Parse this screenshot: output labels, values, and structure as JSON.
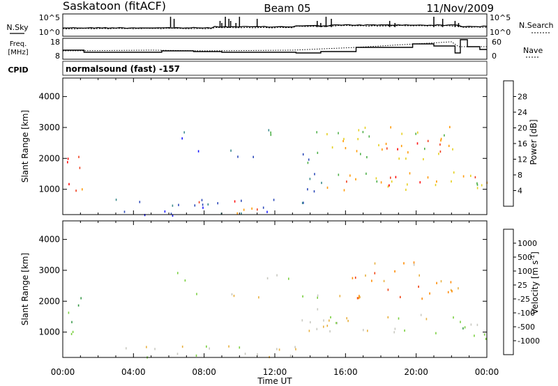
{
  "header": {
    "station": "Saskatoon (fitACF)",
    "beam": "Beam 05",
    "date": "11/Nov/2009"
  },
  "aux": {
    "nsky_label": "N.Sky",
    "nsky_ticks": [
      "10^5",
      "10^0"
    ],
    "nsearch_label": "N.Search",
    "nsearch_ticks": [
      "10^5",
      "10^0"
    ],
    "freq_label": "Freq.",
    "freq_unit": "[MHz]",
    "freq_ticks": [
      "18",
      "8"
    ],
    "nave_label": "Nave",
    "nave_ticks": [
      "60",
      "0"
    ],
    "cpid_label": "CPID",
    "cpid_value": "normalsound (fast) -157"
  },
  "chart_data": [
    {
      "type": "heatmap",
      "panel": "power",
      "ylabel": "Slant Range [km]",
      "ylim": [
        180,
        4600
      ],
      "yticks": [
        "1000",
        "2000",
        "3000",
        "4000"
      ],
      "xlabel": "Time UT",
      "xticks": [
        "00:00",
        "04:00",
        "08:00",
        "12:00",
        "16:00",
        "20:00",
        "00:00"
      ],
      "colorbar": {
        "label": "Power [dB]",
        "ticks": [
          "4",
          "8",
          "12",
          "16",
          "20",
          "24",
          "28"
        ],
        "colors": [
          "#1414ff",
          "#2a47b8",
          "#3a8a8c",
          "#4fb04a",
          "#e6d020",
          "#ff9a00",
          "#f04020",
          "#ff0000"
        ]
      },
      "regions": [
        {
          "t0": 0.0,
          "t1": 1.2,
          "r0": 750,
          "r1": 2150,
          "level": 6
        },
        {
          "t0": 0.15,
          "t1": 0.9,
          "r0": 900,
          "r1": 1300,
          "level": 7
        },
        {
          "t0": 2.5,
          "t1": 13.8,
          "r0": 180,
          "r1": 700,
          "level": 1
        },
        {
          "t0": 7.5,
          "t1": 11.0,
          "r0": 200,
          "r1": 650,
          "level": 6
        },
        {
          "t0": 6.0,
          "t1": 7.0,
          "r0": 2650,
          "r1": 3200,
          "level": 1
        },
        {
          "t0": 7.0,
          "t1": 8.0,
          "r0": 2200,
          "r1": 2450,
          "level": 1
        },
        {
          "t0": 9.3,
          "t1": 11.5,
          "r0": 2050,
          "r1": 2450,
          "level": 2
        },
        {
          "t0": 11.5,
          "t1": 13.8,
          "r0": 2700,
          "r1": 3050,
          "level": 2
        },
        {
          "t0": 13.5,
          "t1": 15.2,
          "r0": 950,
          "r1": 2300,
          "level": 2
        },
        {
          "t0": 14.3,
          "t1": 23.8,
          "r0": 1000,
          "r1": 1600,
          "level": 4
        },
        {
          "t0": 16.0,
          "t1": 21.5,
          "r0": 1150,
          "r1": 1500,
          "level": 6
        },
        {
          "t0": 14.3,
          "t1": 22.8,
          "r0": 2000,
          "r1": 3050,
          "level": 4
        },
        {
          "t0": 17.5,
          "t1": 21.5,
          "r0": 2200,
          "r1": 2650,
          "level": 6
        },
        {
          "t0": 22.8,
          "t1": 24.0,
          "r0": 800,
          "r1": 1500,
          "level": 5
        }
      ]
    },
    {
      "type": "heatmap",
      "panel": "velocity",
      "ylabel": "Slant Range [km]",
      "ylim": [
        180,
        4600
      ],
      "yticks": [
        "1000",
        "2000",
        "3000",
        "4000"
      ],
      "xlabel": "Time UT",
      "xticks": [
        "00:00",
        "04:00",
        "08:00",
        "12:00",
        "16:00",
        "20:00",
        "00:00"
      ],
      "colorbar": {
        "label": "Velocity [m s^-1]",
        "ticks": [
          "1000",
          "500",
          "100",
          "25",
          "-25",
          "-100",
          "-500",
          "-1000"
        ],
        "colors": [
          "#1a3ccf",
          "#2a7aa0",
          "#3a9a4a",
          "#7ad040",
          "#c8c8c0",
          "#e8b040",
          "#ff8a00",
          "#f04010",
          "#ff0000"
        ]
      },
      "regions": [
        {
          "t0": 0.0,
          "t1": 1.1,
          "r0": 850,
          "r1": 2250,
          "level": 3
        },
        {
          "t0": 2.0,
          "t1": 13.5,
          "r0": 180,
          "r1": 600,
          "level": 4
        },
        {
          "t0": 6.0,
          "t1": 7.0,
          "r0": 2700,
          "r1": 3200,
          "level": 4
        },
        {
          "t0": 7.0,
          "t1": 8.0,
          "r0": 2200,
          "r1": 2500,
          "level": 4
        },
        {
          "t0": 9.3,
          "t1": 11.5,
          "r0": 2050,
          "r1": 2450,
          "level": 4
        },
        {
          "t0": 11.5,
          "t1": 13.8,
          "r0": 2700,
          "r1": 3050,
          "level": 4
        },
        {
          "t0": 13.5,
          "t1": 15.0,
          "r0": 1000,
          "r1": 2300,
          "level": 4
        },
        {
          "t0": 14.5,
          "t1": 23.5,
          "r0": 1000,
          "r1": 1700,
          "level": 4
        },
        {
          "t0": 15.5,
          "t1": 22.5,
          "r0": 2100,
          "r1": 3000,
          "level": 6
        },
        {
          "t0": 17.5,
          "t1": 20.5,
          "r0": 2900,
          "r1": 3300,
          "level": 5
        },
        {
          "t0": 22.5,
          "t1": 24.0,
          "r0": 700,
          "r1": 1500,
          "level": 3
        }
      ]
    }
  ]
}
